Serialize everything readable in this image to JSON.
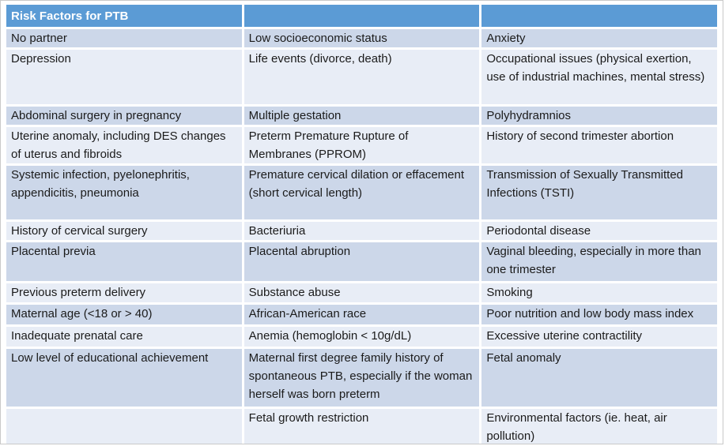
{
  "colors": {
    "header_bg": "#5b9bd5",
    "band_dark": "#ccd7e9",
    "band_light": "#e8edf6",
    "text": "#1b1b1b",
    "header_text": "#ffffff"
  },
  "table": {
    "title": "Risk Factors for PTB",
    "header": [
      "Risk Factors for PTB",
      "",
      ""
    ],
    "rows": [
      {
        "cells": [
          "No partner",
          "Low socioeconomic status",
          "Anxiety"
        ]
      },
      {
        "cells": [
          "Depression",
          "Life events (divorce, death)",
          "Occupational issues (physical exertion, use of industrial machines, mental stress)"
        ]
      },
      {
        "cells": [
          "Abdominal surgery in pregnancy",
          "Multiple gestation",
          "Polyhydramnios"
        ]
      },
      {
        "cells": [
          "Uterine anomaly, including DES changes of uterus and fibroids",
          "Preterm Premature Rupture of Membranes (PPROM)",
          "History of second trimester abortion"
        ]
      },
      {
        "cells": [
          "Systemic infection, pyelonephritis, appendicitis, pneumonia",
          "Premature cervical dilation or effacement (short cervical length)",
          "Transmission of Sexually Transmitted Infections (TSTI)"
        ]
      },
      {
        "cells": [
          "History of cervical surgery",
          "Bacteriuria",
          "Periodontal disease"
        ]
      },
      {
        "cells": [
          "Placental previa",
          "Placental abruption",
          "Vaginal bleeding, especially in more than one trimester"
        ]
      },
      {
        "cells": [
          "Previous preterm delivery",
          "Substance abuse",
          "Smoking"
        ]
      },
      {
        "cells": [
          "Maternal age (<18 or > 40)",
          "African-American race",
          "Poor nutrition and low body mass index"
        ]
      },
      {
        "cells": [
          "Inadequate prenatal care",
          "Anemia (hemoglobin < 10g/dL)",
          "Excessive uterine contractility"
        ]
      },
      {
        "cells": [
          "Low level of educational achievement",
          "Maternal first degree family history of spontaneous PTB, especially if the woman herself was born preterm",
          "Fetal anomaly"
        ]
      },
      {
        "cells": [
          "",
          "Fetal growth restriction",
          "Environmental factors (ie. heat, air pollution)"
        ]
      }
    ]
  }
}
